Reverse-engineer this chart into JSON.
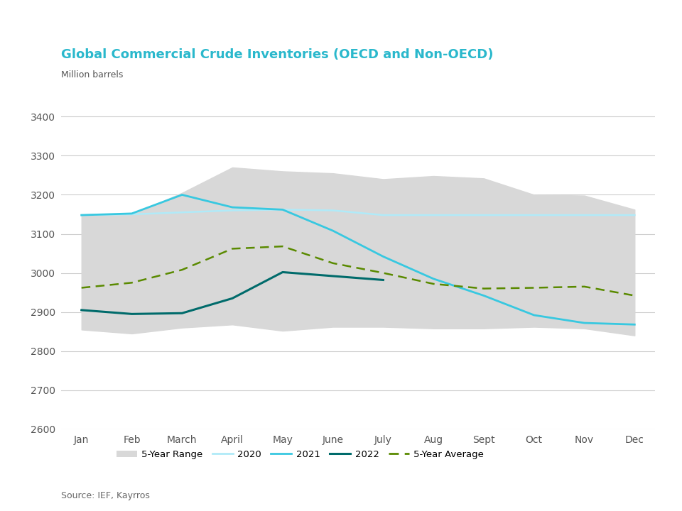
{
  "title": "Global Commercial Crude Inventories (OECD and Non-OECD)",
  "ylabel": "Million barrels",
  "months": [
    "Jan",
    "Feb",
    "March",
    "April",
    "May",
    "June",
    "July",
    "Aug",
    "Sept",
    "Oct",
    "Nov",
    "Dec"
  ],
  "ylim": [
    2600,
    3450
  ],
  "yticks": [
    2600,
    2700,
    2800,
    2900,
    3000,
    3100,
    3200,
    3300,
    3400
  ],
  "range_upper": [
    3148,
    3150,
    3205,
    3270,
    3260,
    3255,
    3240,
    3248,
    3242,
    3200,
    3198,
    3162
  ],
  "range_lower": [
    2855,
    2845,
    2860,
    2868,
    2852,
    2862,
    2862,
    2858,
    2858,
    2862,
    2858,
    2840
  ],
  "y2020": [
    3148,
    3150,
    3155,
    3160,
    3162,
    3160,
    3148,
    3148,
    3148,
    3148,
    3148,
    3148
  ],
  "y2021": [
    3148,
    3152,
    3200,
    3168,
    3162,
    3108,
    3042,
    2985,
    2942,
    2892,
    2872,
    2868
  ],
  "y2022": [
    2905,
    2895,
    2897,
    2935,
    3002,
    2992,
    2982,
    null,
    null,
    null,
    null,
    null
  ],
  "y5yr_avg": [
    2962,
    2975,
    3008,
    3062,
    3068,
    3025,
    3000,
    2972,
    2960,
    2962,
    2965,
    2942
  ],
  "color_range": "#d8d8d8",
  "color_2020": "#b0eaf8",
  "color_2021": "#38c8e0",
  "color_2022": "#006b6b",
  "color_5yr_avg": "#5a8a00",
  "source_text": "Source: IEF, Kayrros",
  "title_color": "#2ab8cc"
}
